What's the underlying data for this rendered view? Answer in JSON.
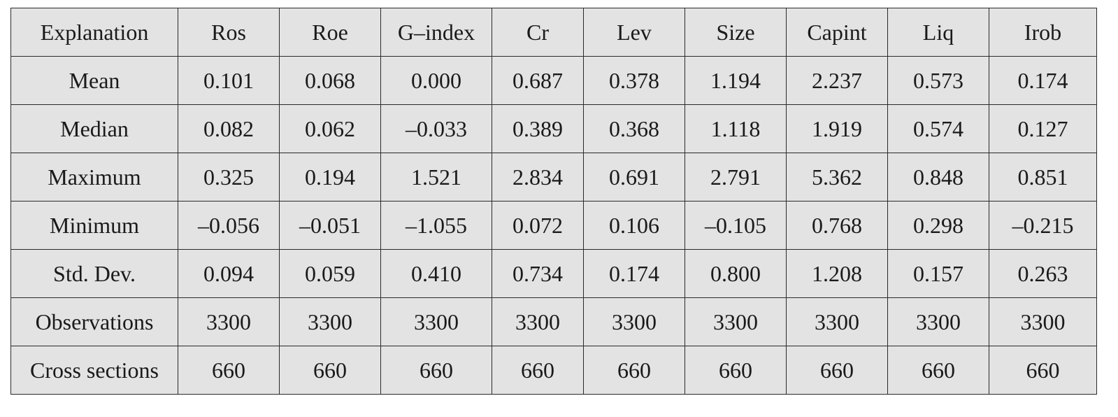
{
  "table": {
    "headers": [
      "Explanation",
      "Ros",
      "Roe",
      "G–index",
      "Cr",
      "Lev",
      "Size",
      "Capint",
      "Liq",
      "Irob"
    ],
    "rows": [
      [
        "Mean",
        "0.101",
        "0.068",
        "0.000",
        "0.687",
        "0.378",
        "1.194",
        "2.237",
        "0.573",
        "0.174"
      ],
      [
        "Median",
        "0.082",
        "0.062",
        "–0.033",
        "0.389",
        "0.368",
        "1.118",
        "1.919",
        "0.574",
        "0.127"
      ],
      [
        "Maximum",
        "0.325",
        "0.194",
        "1.521",
        "2.834",
        "0.691",
        "2.791",
        "5.362",
        "0.848",
        "0.851"
      ],
      [
        "Minimum",
        "–0.056",
        "–0.051",
        "–1.055",
        "0.072",
        "0.106",
        "–0.105",
        "0.768",
        "0.298",
        "–0.215"
      ],
      [
        "Std. Dev.",
        "0.094",
        "0.059",
        "0.410",
        "0.734",
        "0.174",
        "0.800",
        "1.208",
        "0.157",
        "0.263"
      ],
      [
        "Observations",
        "3300",
        "3300",
        "3300",
        "3300",
        "3300",
        "3300",
        "3300",
        "3300",
        "3300"
      ],
      [
        "Cross sections",
        "660",
        "660",
        "660",
        "660",
        "660",
        "660",
        "660",
        "660",
        "660"
      ]
    ]
  }
}
